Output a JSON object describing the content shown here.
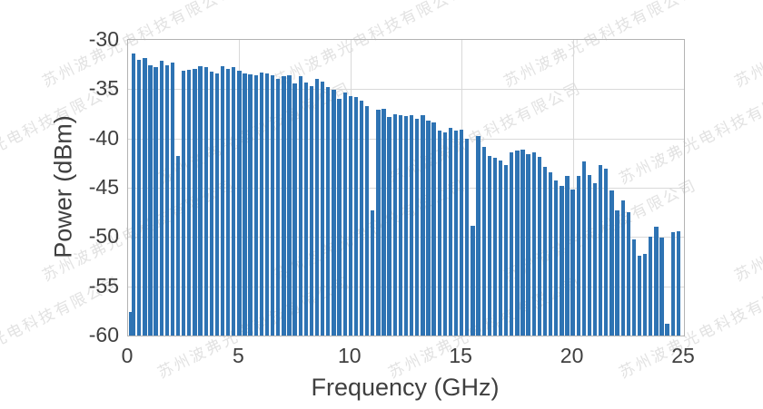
{
  "watermark": {
    "text": "苏州波弗光电科技有限公司",
    "color": "#e2e2e2"
  },
  "chart_data": {
    "type": "bar",
    "title": "",
    "xlabel": "Frequency (GHz)",
    "ylabel": "Power (dBm)",
    "xlim": [
      0,
      25
    ],
    "ylim": [
      -60,
      -30
    ],
    "xticks": [
      0,
      5,
      10,
      15,
      20,
      25
    ],
    "yticks": [
      -30,
      -35,
      -40,
      -45,
      -50,
      -55,
      -60
    ],
    "grid": true,
    "legend": "none",
    "bar_color": "#2e73b3",
    "x": [
      0,
      0.25,
      0.5,
      0.75,
      1.0,
      1.25,
      1.5,
      1.75,
      2.0,
      2.25,
      2.5,
      2.75,
      3.0,
      3.25,
      3.5,
      3.75,
      4.0,
      4.25,
      4.5,
      4.75,
      5.0,
      5.25,
      5.5,
      5.75,
      6.0,
      6.25,
      6.5,
      6.75,
      7.0,
      7.25,
      7.5,
      7.75,
      8.0,
      8.25,
      8.5,
      8.75,
      9.0,
      9.25,
      9.5,
      9.75,
      10.0,
      10.25,
      10.5,
      10.75,
      11.0,
      11.25,
      11.5,
      11.75,
      12.0,
      12.25,
      12.5,
      12.75,
      13.0,
      13.25,
      13.5,
      13.75,
      14.0,
      14.25,
      14.5,
      14.75,
      15.0,
      15.25,
      15.5,
      15.75,
      16.0,
      16.25,
      16.5,
      16.75,
      17.0,
      17.25,
      17.5,
      17.75,
      18.0,
      18.25,
      18.5,
      18.75,
      19.0,
      19.25,
      19.5,
      19.75,
      20.0,
      20.25,
      20.5,
      20.75,
      21.0,
      21.25,
      21.5,
      21.75,
      22.0,
      22.25,
      22.5,
      22.75,
      23.0,
      23.25,
      23.5,
      23.75,
      24.0,
      24.25,
      24.5,
      24.75
    ],
    "values": [
      -57.6,
      -31.4,
      -32.0,
      -31.8,
      -32.6,
      -32.8,
      -32.1,
      -32.6,
      -32.3,
      -41.8,
      -33.1,
      -33.0,
      -32.9,
      -32.7,
      -32.8,
      -33.2,
      -33.4,
      -32.7,
      -32.9,
      -32.8,
      -33.1,
      -33.4,
      -33.5,
      -33.6,
      -33.3,
      -33.4,
      -33.6,
      -34.0,
      -33.7,
      -33.6,
      -34.4,
      -33.7,
      -34.3,
      -34.7,
      -34.0,
      -34.2,
      -34.8,
      -35.1,
      -36.0,
      -35.3,
      -35.7,
      -35.8,
      -36.2,
      -36.7,
      -47.3,
      -37.1,
      -37.0,
      -37.8,
      -37.5,
      -37.6,
      -37.7,
      -37.6,
      -38.0,
      -37.6,
      -38.2,
      -38.4,
      -39.2,
      -39.4,
      -38.9,
      -39.2,
      -39.1,
      -40.0,
      -48.9,
      -39.8,
      -40.9,
      -41.8,
      -42.0,
      -42.2,
      -42.7,
      -41.4,
      -41.2,
      -41.1,
      -41.6,
      -41.4,
      -41.9,
      -42.9,
      -43.4,
      -44.3,
      -44.8,
      -43.8,
      -45.2,
      -43.8,
      -42.3,
      -43.7,
      -44.5,
      -42.7,
      -43.1,
      -45.3,
      -47.3,
      -46.3,
      -47.5,
      -50.2,
      -51.9,
      -51.7,
      -50.0,
      -49.0,
      -50.1,
      -58.8,
      -49.5,
      -49.4
    ]
  }
}
